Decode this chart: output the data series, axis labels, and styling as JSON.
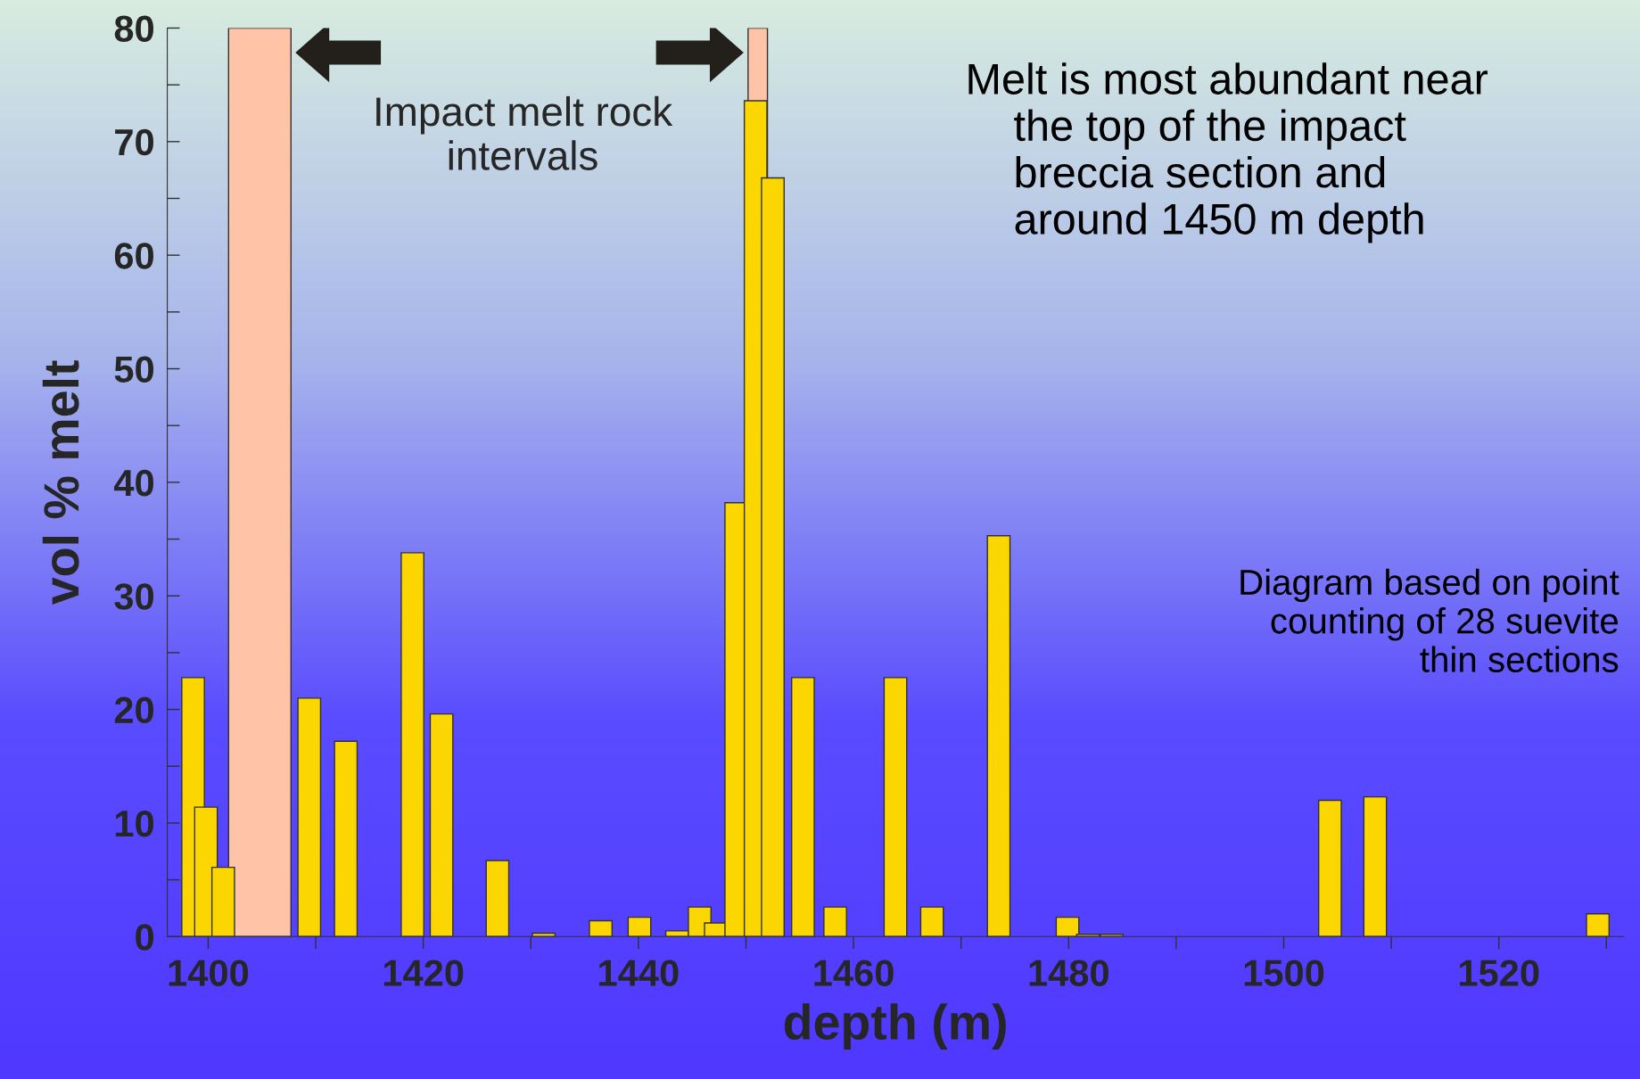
{
  "chart_data": {
    "type": "bar",
    "xlabel": "depth (m)",
    "ylabel": "vol % melt",
    "x": [
      1398.6,
      1399.8,
      1401.4,
      1409.4,
      1412.8,
      1419.0,
      1421.7,
      1426.9,
      1431.2,
      1436.5,
      1440.1,
      1443.6,
      1445.7,
      1447.2,
      1449.1,
      1450.9,
      1452.5,
      1455.3,
      1458.3,
      1463.9,
      1467.3,
      1473.5,
      1479.9,
      1481.8,
      1484.0,
      1504.3,
      1508.5,
      1529.2
    ],
    "values": [
      22.8,
      11.4,
      6.1,
      21.0,
      17.2,
      33.8,
      19.6,
      6.7,
      0.3,
      1.4,
      1.7,
      0.5,
      2.6,
      1.2,
      38.2,
      73.6,
      66.8,
      22.8,
      2.6,
      22.8,
      2.6,
      35.3,
      1.7,
      0.2,
      0.2,
      12.0,
      12.3,
      2.0
    ],
    "color": "#fcd600",
    "xlim": [
      1396.2,
      1531.6
    ],
    "xticks": [
      1400,
      {
        "value": 1410,
        "label": null
      },
      1420,
      {
        "value": 1430,
        "label": null
      },
      1440,
      {
        "value": 1450,
        "label": null
      },
      1460,
      {
        "value": 1470,
        "label": null
      },
      1480,
      {
        "value": 1490,
        "label": null
      },
      1500,
      {
        "value": 1510,
        "label": null
      },
      1520,
      {
        "value": 1530,
        "label": null
      }
    ],
    "ylim": [
      0,
      80
    ],
    "yticks": [
      0,
      {
        "value": 5,
        "label": null
      },
      10,
      {
        "value": 15,
        "label": null
      },
      20,
      {
        "value": 25,
        "label": null
      },
      30,
      {
        "value": 35,
        "label": null
      },
      40,
      {
        "value": 45,
        "label": null
      },
      50,
      {
        "value": 55,
        "label": null
      },
      60,
      {
        "value": 65,
        "label": null
      },
      70,
      {
        "value": 75,
        "label": null
      },
      80
    ],
    "bands": [
      {
        "axis": "x",
        "from": 1401.9,
        "to": 1407.7,
        "color": "#ffc4a8"
      },
      {
        "axis": "x",
        "from": 1450.2,
        "to": 1452.0,
        "color": "#ffc4a8"
      }
    ],
    "annotations": [
      "Impact melt rock\nintervals",
      "Melt is most abundant near\n    the top of the impact\n    breccia section and\n    around 1450 m depth",
      "Diagram based on point\ncounting of 28 suevite\nthin sections"
    ],
    "grid": false
  }
}
